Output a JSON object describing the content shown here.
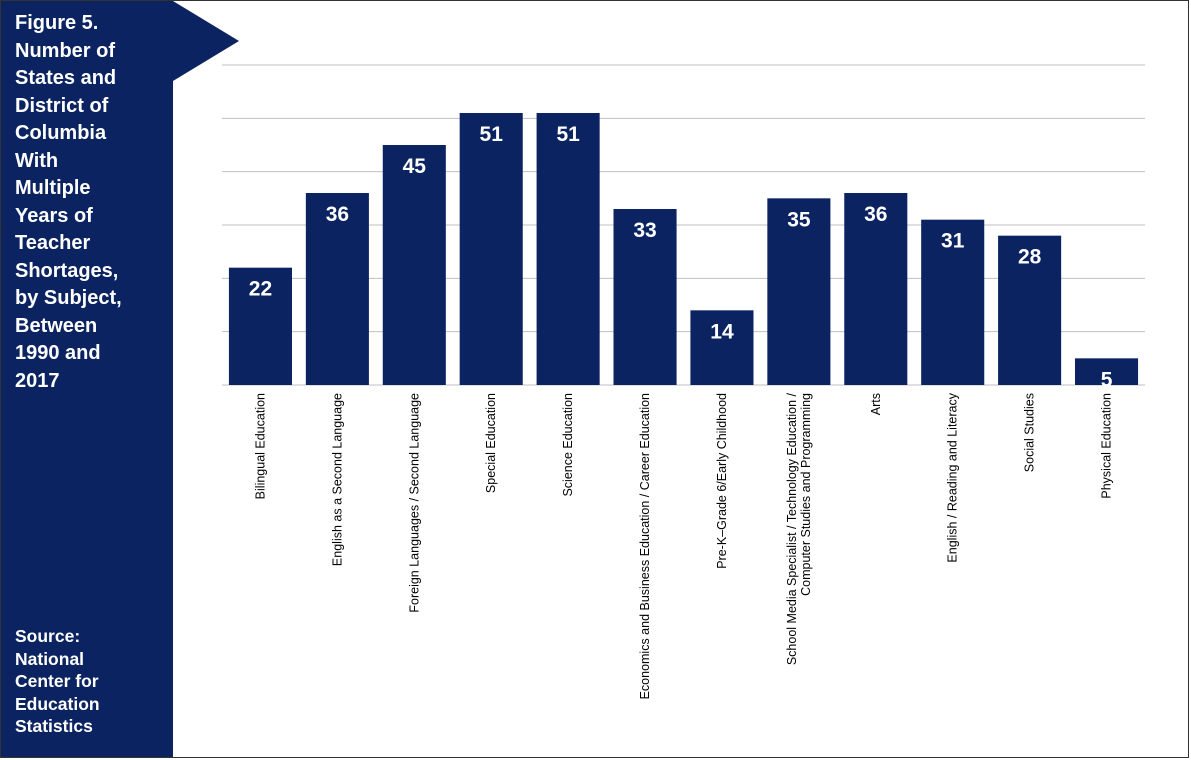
{
  "panel": {
    "title": "Figure 5.\nNumber of\nStates and\nDistrict of\nColumbia\nWith\nMultiple\nYears  of\nTeacher\nShortages,\nby Subject,\nBetween\n1990 and\n2017",
    "source": "Source:\nNational\nCenter for\nEducation\nStatistics",
    "color": "#0b2461"
  },
  "chart_data": {
    "type": "bar",
    "categories": [
      "Bilingual Education",
      "English as a Second Language",
      "Foreign Languages / Second Language",
      "Special Education",
      "Science Education",
      "Economics and Business Education / Career Education",
      "Pre-K–Grade 6/Early Childhood",
      "School Media Specialist / Technology Education /\nComputer Studies and Programming",
      "Arts",
      "English / Reading and Literacy",
      "Social Studies",
      "Physical Education"
    ],
    "values": [
      22,
      36,
      45,
      51,
      51,
      33,
      14,
      35,
      36,
      31,
      28,
      5
    ],
    "ylim": [
      0,
      60
    ],
    "gridlines": [
      10,
      20,
      30,
      40,
      50,
      60
    ],
    "grid": true,
    "bar_color": "#0b2461",
    "label_color": "#ffffff",
    "grid_color": "#bfbfbf"
  }
}
